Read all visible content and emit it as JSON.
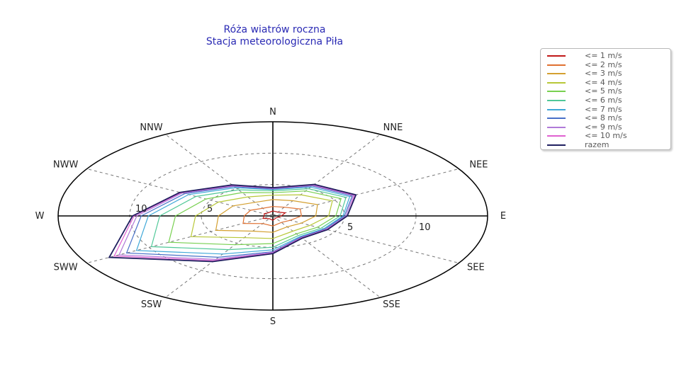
{
  "chart_data": {
    "type": "radar",
    "title": "Róża wiatrów roczna",
    "subtitle": "Stacja meteorologiczna Piła",
    "directions": [
      "N",
      "NNE",
      "NEE",
      "E",
      "SEE",
      "SSE",
      "S",
      "SSW",
      "SWW",
      "W",
      "NWW",
      "NNW"
    ],
    "radial_ticks": [
      {
        "value": 5,
        "label": "5"
      },
      {
        "value": 10,
        "label": "10"
      }
    ],
    "rmax": 15,
    "grid": true,
    "legend_position": "top-right",
    "series": [
      {
        "name": "<= 1 m/s",
        "color": "#c01818",
        "values": [
          0.8,
          0.7,
          1.0,
          0.6,
          0.4,
          0.4,
          0.7,
          0.5,
          0.8,
          0.6,
          0.7,
          0.6
        ]
      },
      {
        "name": "<= 2 m/s",
        "color": "#e07030",
        "values": [
          1.5,
          1.6,
          2.2,
          2.0,
          1.4,
          1.2,
          1.6,
          1.4,
          2.4,
          2.0,
          1.8,
          1.4
        ]
      },
      {
        "name": "<= 3 m/s",
        "color": "#d4a030",
        "values": [
          2.6,
          2.8,
          3.6,
          3.0,
          2.3,
          2.0,
          2.6,
          2.8,
          4.6,
          3.8,
          3.2,
          2.5
        ]
      },
      {
        "name": "<= 4 m/s",
        "color": "#b8c838",
        "values": [
          3.3,
          3.9,
          4.8,
          3.9,
          3.0,
          2.8,
          3.6,
          4.0,
          6.6,
          5.4,
          4.4,
          3.5
        ]
      },
      {
        "name": "<= 5 m/s",
        "color": "#78d050",
        "values": [
          3.7,
          4.6,
          5.5,
          4.4,
          3.6,
          3.3,
          4.4,
          5.3,
          8.4,
          6.8,
          5.4,
          4.3
        ]
      },
      {
        "name": "<= 6 m/s",
        "color": "#50c898",
        "values": [
          4.0,
          5.0,
          5.9,
          4.7,
          3.9,
          3.6,
          5.0,
          6.2,
          9.8,
          7.9,
          6.2,
          4.8
        ]
      },
      {
        "name": "<= 7 m/s",
        "color": "#40a8d8",
        "values": [
          4.2,
          5.3,
          6.2,
          4.9,
          4.1,
          3.8,
          5.4,
          7.0,
          11.0,
          8.7,
          6.8,
          5.2
        ]
      },
      {
        "name": "<= 8 m/s",
        "color": "#4870c8",
        "values": [
          4.3,
          5.5,
          6.4,
          5.0,
          4.2,
          3.9,
          5.7,
          7.6,
          11.8,
          9.2,
          7.1,
          5.4
        ]
      },
      {
        "name": "<= 9 m/s",
        "color": "#b07ad8",
        "values": [
          4.4,
          5.6,
          6.5,
          5.1,
          4.3,
          4.0,
          5.8,
          8.0,
          12.4,
          9.5,
          7.3,
          5.5
        ]
      },
      {
        "name": "<= 10 m/s",
        "color": "#e060d0",
        "values": [
          4.4,
          5.7,
          6.6,
          5.2,
          4.3,
          4.0,
          5.9,
          8.2,
          12.8,
          9.7,
          7.4,
          5.6
        ]
      },
      {
        "name": "razem",
        "color": "#202060",
        "values": [
          4.5,
          5.8,
          6.7,
          5.2,
          4.4,
          4.1,
          6.0,
          8.4,
          13.2,
          9.8,
          7.5,
          5.7
        ]
      }
    ]
  }
}
